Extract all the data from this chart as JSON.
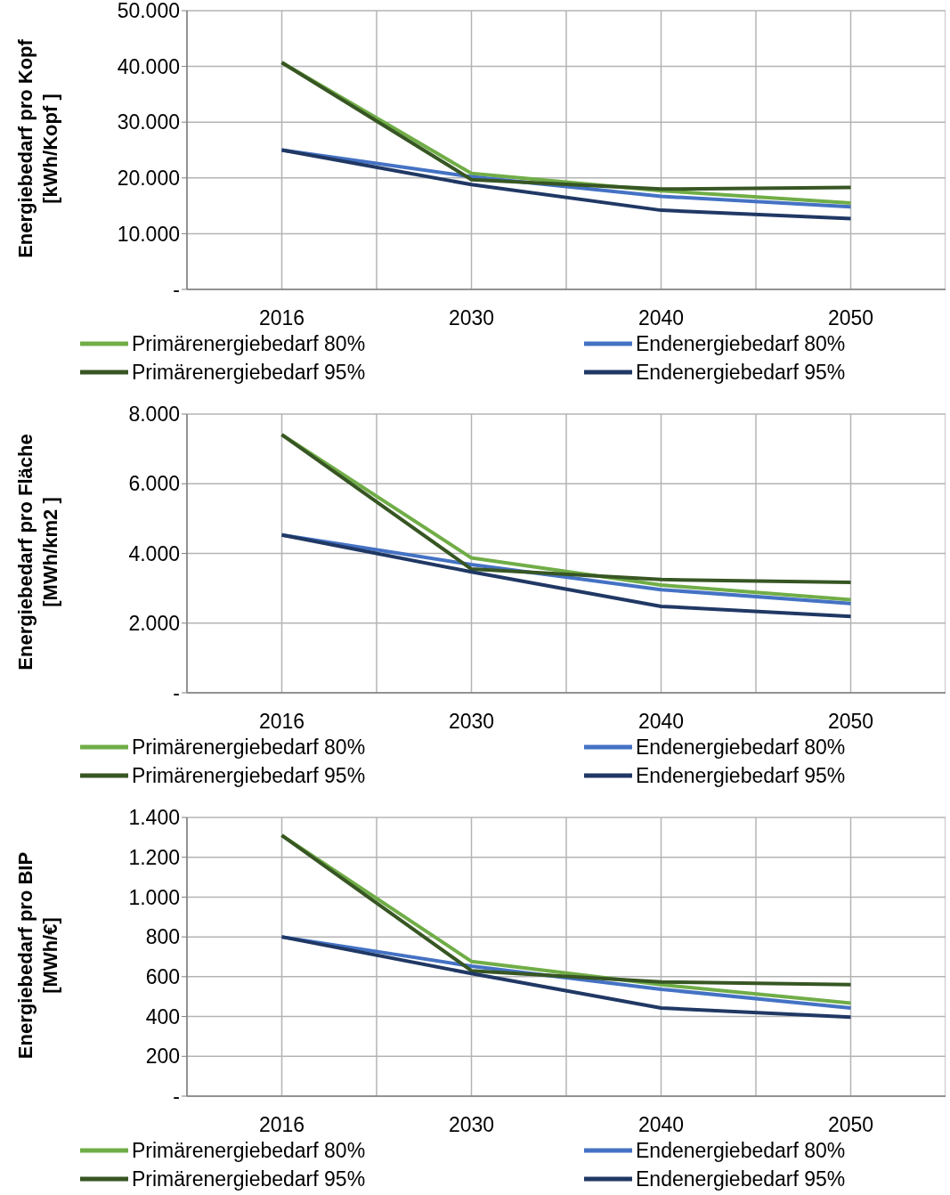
{
  "chart_data": [
    {
      "type": "line",
      "ylabel": "Energiebedarf pro Kopf\n[kWh/Kopf ]",
      "categories": [
        "2016",
        "2030",
        "2040",
        "2050"
      ],
      "ylim": [
        0,
        50000
      ],
      "yticks": [
        {
          "value": 0,
          "label": "-"
        },
        {
          "value": 10000,
          "label": "10.000"
        },
        {
          "value": 20000,
          "label": "20.000"
        },
        {
          "value": 30000,
          "label": "30.000"
        },
        {
          "value": 40000,
          "label": "40.000"
        },
        {
          "value": 50000,
          "label": "50.000"
        }
      ],
      "grid": true,
      "legend": "bottom",
      "marker": "none",
      "line_style": "solid",
      "series": [
        {
          "name": "Primärenergiebedarf 80%",
          "color": "#70ad47",
          "values": [
            40700,
            20800,
            17700,
            15500
          ]
        },
        {
          "name": "Endenergiebedarf 80%",
          "color": "#4472c4",
          "values": [
            25000,
            20200,
            16700,
            14800
          ]
        },
        {
          "name": "Primärenergiebedarf 95%",
          "color": "#375623",
          "values": [
            40700,
            19700,
            18000,
            18300
          ]
        },
        {
          "name": "Endenergiebedarf 95%",
          "color": "#203864",
          "values": [
            25000,
            18800,
            14200,
            12700
          ]
        }
      ]
    },
    {
      "type": "line",
      "ylabel": "Energiebedarf pro Fläche\n[MWh/km2 ]",
      "categories": [
        "2016",
        "2030",
        "2040",
        "2050"
      ],
      "ylim": [
        0,
        8000
      ],
      "yticks": [
        {
          "value": 0,
          "label": "-"
        },
        {
          "value": 2000,
          "label": "2.000"
        },
        {
          "value": 4000,
          "label": "4.000"
        },
        {
          "value": 6000,
          "label": "6.000"
        },
        {
          "value": 8000,
          "label": "8.000"
        }
      ],
      "grid": true,
      "legend": "bottom",
      "marker": "none",
      "line_style": "solid",
      "series": [
        {
          "name": "Primärenergiebedarf 80%",
          "color": "#70ad47",
          "values": [
            7410,
            3870,
            3090,
            2670
          ]
        },
        {
          "name": "Endenergiebedarf 80%",
          "color": "#4472c4",
          "values": [
            4530,
            3680,
            2960,
            2560
          ]
        },
        {
          "name": "Primärenergiebedarf 95%",
          "color": "#375623",
          "values": [
            7410,
            3550,
            3250,
            3170
          ]
        },
        {
          "name": "Endenergiebedarf 95%",
          "color": "#203864",
          "values": [
            4530,
            3470,
            2480,
            2190
          ]
        }
      ]
    },
    {
      "type": "line",
      "ylabel": "Energiebedarf pro BIP\n[MWh/€]",
      "categories": [
        "2016",
        "2030",
        "2040",
        "2050"
      ],
      "ylim": [
        0,
        1400
      ],
      "yticks": [
        {
          "value": 0,
          "label": "-"
        },
        200,
        400,
        600,
        800,
        {
          "value": 1000,
          "label": "1.000"
        },
        {
          "value": 1200,
          "label": "1.200"
        },
        {
          "value": 1400,
          "label": "1.400"
        }
      ],
      "grid": true,
      "legend": "bottom",
      "marker": "none",
      "line_style": "solid",
      "series": [
        {
          "name": "Primärenergiebedarf 80%",
          "color": "#70ad47",
          "values": [
            1310,
            677,
            560,
            467
          ]
        },
        {
          "name": "Endenergiebedarf 80%",
          "color": "#4472c4",
          "values": [
            800,
            653,
            537,
            443
          ]
        },
        {
          "name": "Primärenergiebedarf 95%",
          "color": "#375623",
          "values": [
            1310,
            630,
            574,
            560
          ]
        },
        {
          "name": "Endenergiebedarf 95%",
          "color": "#203864",
          "values": [
            800,
            616,
            443,
            397
          ]
        }
      ]
    }
  ]
}
